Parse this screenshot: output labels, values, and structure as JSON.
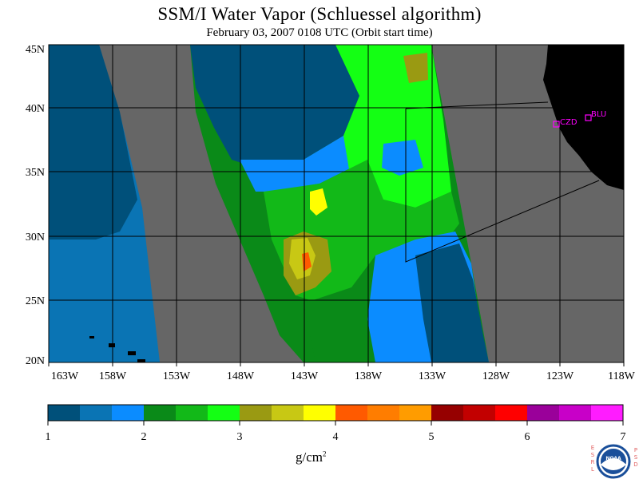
{
  "header": {
    "title": "SSM/I Water Vapor (Schluessel algorithm)",
    "subtitle": "February 03, 2007  0108 UTC  (Orbit start time)"
  },
  "map": {
    "lon_labels": [
      "163W",
      "158W",
      "153W",
      "148W",
      "143W",
      "138W",
      "133W",
      "128W",
      "123W",
      "118W"
    ],
    "lat_labels": [
      "45N",
      "40N",
      "35N",
      "30N",
      "25N",
      "20N"
    ],
    "stations": [
      {
        "name": "CZD",
        "color": "#ff00ff"
      },
      {
        "name": "BLU",
        "color": "#ff00ff"
      }
    ],
    "no_data_color": "#666666",
    "land_color": "#000000"
  },
  "colorbar": {
    "colors": [
      "#00507a",
      "#0a74b4",
      "#0b8cff",
      "#0a8a18",
      "#12b918",
      "#14ff14",
      "#9a9a12",
      "#c8c814",
      "#ffff00",
      "#ff5a00",
      "#ff7d00",
      "#ff9c00",
      "#960000",
      "#c20000",
      "#ff0000",
      "#9a009a",
      "#c800c8",
      "#ff1cff"
    ],
    "tick_labels": [
      "1",
      "2",
      "3",
      "4",
      "5",
      "6",
      "7"
    ],
    "unit": "g/cm",
    "unit_sup": "2"
  },
  "logo": {
    "left_text": "ESRL",
    "right_text": "PSD",
    "center_text": "NOAA"
  }
}
